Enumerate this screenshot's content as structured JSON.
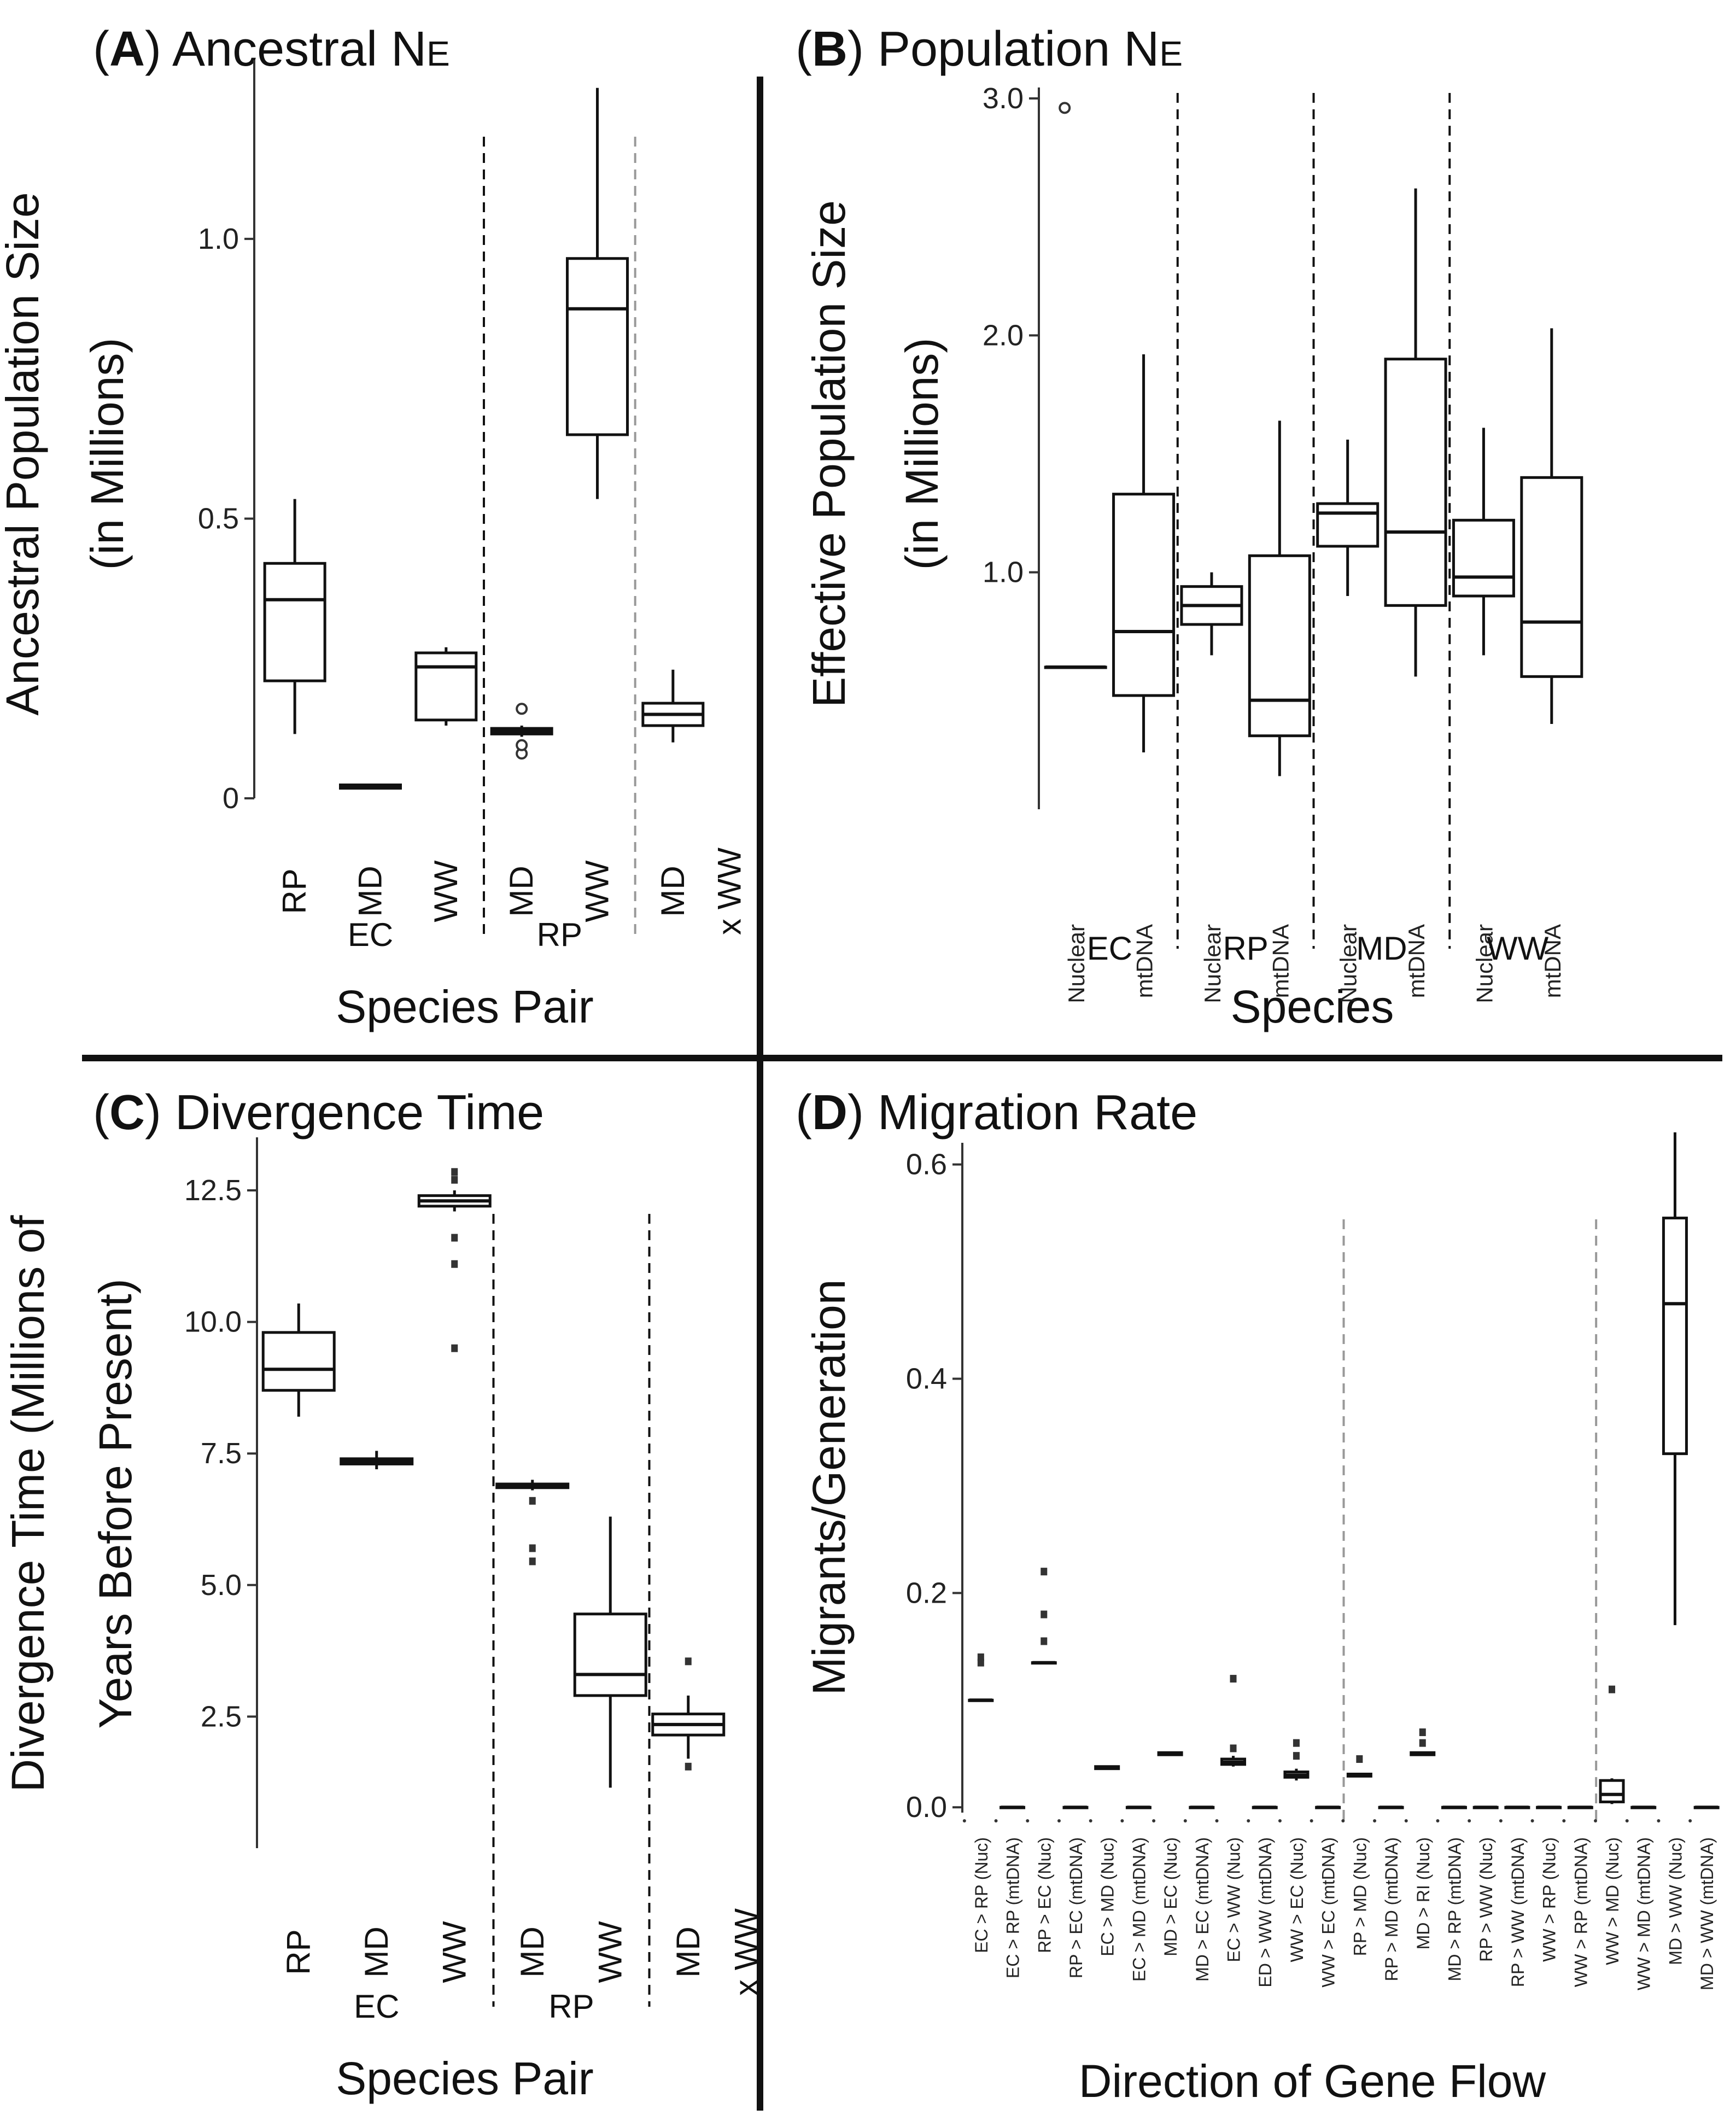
{
  "chart_data": [
    {
      "id": "A",
      "type": "box",
      "title_letter": "A",
      "title_text": "Ancestral N",
      "title_sub": "E",
      "ylabel_line1": "Ancestral Population Size",
      "ylabel_line2": "(in Millions)",
      "xlabel": "Species Pair",
      "ylim": [
        0,
        1.3
      ],
      "yticks": [
        {
          "v": 0,
          "label": "0"
        },
        {
          "v": 0.5,
          "label": "0.5"
        },
        {
          "v": 1.0,
          "label": "1.0"
        }
      ],
      "categories": [
        "RP",
        "MD",
        "WW",
        "MD",
        "WW",
        "MD"
      ],
      "groups": [
        {
          "label": "EC",
          "from": 0,
          "to": 2
        },
        {
          "label": "RP",
          "from": 3,
          "to": 4
        },
        {
          "label": "x WW",
          "from": 5,
          "to": 5
        }
      ],
      "separators": [
        {
          "after": 2,
          "style": "dash"
        },
        {
          "after": 4,
          "style": "gray"
        }
      ],
      "boxes": [
        {
          "q1": 0.21,
          "med": 0.355,
          "q3": 0.42,
          "lo": 0.115,
          "hi": 0.535,
          "out": []
        },
        {
          "q1": 0.018,
          "med": 0.021,
          "q3": 0.024,
          "lo": 0.018,
          "hi": 0.024,
          "out": []
        },
        {
          "q1": 0.14,
          "med": 0.235,
          "q3": 0.26,
          "lo": 0.13,
          "hi": 0.27,
          "out": []
        },
        {
          "q1": 0.115,
          "med": 0.12,
          "q3": 0.125,
          "lo": 0.11,
          "hi": 0.13,
          "out": [
            0.08,
            0.095,
            0.16
          ]
        },
        {
          "q1": 0.65,
          "med": 0.875,
          "q3": 0.965,
          "lo": 0.535,
          "hi": 1.27,
          "out": []
        },
        {
          "q1": 0.13,
          "med": 0.15,
          "q3": 0.17,
          "lo": 0.1,
          "hi": 0.23,
          "out": []
        }
      ]
    },
    {
      "id": "B",
      "type": "box",
      "title_letter": "B",
      "title_text": "Population N",
      "title_sub": "E",
      "ylabel_line1": "Effective Population Size",
      "ylabel_line2": "(in Millions)",
      "xlabel": "Species",
      "ylim": [
        0,
        3.0
      ],
      "yticks": [
        {
          "v": 1.0,
          "label": "1.0"
        },
        {
          "v": 2.0,
          "label": "2.0"
        },
        {
          "v": 3.0,
          "label": "3.0"
        }
      ],
      "categories": [
        "Nuclear",
        "mtDNA",
        "Nuclear",
        "mtDNA",
        "Nuclear",
        "mtDNA",
        "Nuclear",
        "mtDNA"
      ],
      "groups": [
        {
          "label": "EC",
          "from": 0,
          "to": 1
        },
        {
          "label": "RP",
          "from": 2,
          "to": 3
        },
        {
          "label": "MD",
          "from": 4,
          "to": 5
        },
        {
          "label": "WW",
          "from": 6,
          "to": 7
        }
      ],
      "separators": [
        {
          "after": 1,
          "style": "dash"
        },
        {
          "after": 3,
          "style": "dash"
        },
        {
          "after": 5,
          "style": "dash"
        }
      ],
      "boxes": [
        {
          "q1": 0.6,
          "med": 0.6,
          "q3": 0.6,
          "lo": 0.6,
          "hi": 0.6,
          "out": [
            2.96
          ]
        },
        {
          "q1": 0.48,
          "med": 0.75,
          "q3": 1.33,
          "lo": 0.24,
          "hi": 1.92,
          "out": []
        },
        {
          "q1": 0.78,
          "med": 0.86,
          "q3": 0.94,
          "lo": 0.65,
          "hi": 1.0,
          "out": []
        },
        {
          "q1": 0.31,
          "med": 0.46,
          "q3": 1.07,
          "lo": 0.14,
          "hi": 1.64,
          "out": []
        },
        {
          "q1": 1.11,
          "med": 1.25,
          "q3": 1.29,
          "lo": 0.9,
          "hi": 1.56,
          "out": []
        },
        {
          "q1": 0.86,
          "med": 1.17,
          "q3": 1.9,
          "lo": 0.56,
          "hi": 2.62,
          "out": []
        },
        {
          "q1": 0.9,
          "med": 0.98,
          "q3": 1.22,
          "lo": 0.65,
          "hi": 1.61,
          "out": []
        },
        {
          "q1": 0.56,
          "med": 0.79,
          "q3": 1.4,
          "lo": 0.36,
          "hi": 2.03,
          "out": []
        }
      ]
    },
    {
      "id": "C",
      "type": "box",
      "title_letter": "C",
      "title_text": "Divergence Time",
      "title_sub": "",
      "ylabel_line1": "Divergence Time (Millions of",
      "ylabel_line2": "Years Before Present)",
      "xlabel": "Species Pair",
      "ylim": [
        0.0,
        13.3
      ],
      "yticks": [
        {
          "v": 2.5,
          "label": "2.5"
        },
        {
          "v": 5.0,
          "label": "5.0"
        },
        {
          "v": 7.5,
          "label": "7.5"
        },
        {
          "v": 10.0,
          "label": "10.0"
        },
        {
          "v": 12.5,
          "label": "12.5"
        }
      ],
      "categories": [
        "RP",
        "MD",
        "WW",
        "MD",
        "WW",
        "MD"
      ],
      "groups": [
        {
          "label": "EC",
          "from": 0,
          "to": 2
        },
        {
          "label": "RP",
          "from": 3,
          "to": 4
        },
        {
          "label": "x WW",
          "from": 5,
          "to": 5
        }
      ],
      "separators": [
        {
          "after": 2,
          "style": "dash"
        },
        {
          "after": 4,
          "style": "dash"
        }
      ],
      "boxes": [
        {
          "q1": 8.7,
          "med": 9.1,
          "q3": 9.8,
          "lo": 8.2,
          "hi": 10.35,
          "out": []
        },
        {
          "q1": 7.3,
          "med": 7.35,
          "q3": 7.4,
          "lo": 7.2,
          "hi": 7.55,
          "out": []
        },
        {
          "q1": 12.2,
          "med": 12.3,
          "q3": 12.4,
          "lo": 12.1,
          "hi": 12.5,
          "out": [
            12.85,
            12.7,
            11.6,
            11.1,
            9.5
          ]
        },
        {
          "q1": 6.85,
          "med": 6.88,
          "q3": 6.92,
          "lo": 6.8,
          "hi": 7.0,
          "out": [
            6.6,
            5.7,
            5.45
          ]
        },
        {
          "q1": 2.9,
          "med": 3.3,
          "q3": 4.45,
          "lo": 1.15,
          "hi": 6.3,
          "out": []
        },
        {
          "q1": 2.15,
          "med": 2.35,
          "q3": 2.55,
          "lo": 1.7,
          "hi": 2.9,
          "out": [
            3.55,
            1.55
          ]
        }
      ]
    },
    {
      "id": "D",
      "type": "box",
      "title_letter": "D",
      "title_text": "Migration Rate",
      "title_sub": "",
      "ylabel_line1": "Migrants/Generation",
      "ylabel_line2": "",
      "xlabel": "Direction of Gene Flow",
      "ylim": [
        -0.005,
        0.61
      ],
      "yticks": [
        {
          "v": 0.0,
          "label": "0.0"
        },
        {
          "v": 0.2,
          "label": "0.2"
        },
        {
          "v": 0.4,
          "label": "0.4"
        },
        {
          "v": 0.6,
          "label": "0.6"
        }
      ],
      "categories": [
        "EC > RP (Nuc)",
        "EC > RP (mtDNA)",
        "RP > EC (Nuc)",
        "RP > EC (mtDNA)",
        "EC > MD (Nuc)",
        "EC > MD (mtDNA)",
        "MD > EC (Nuc)",
        "MD > EC (mtDNA)",
        "EC > WW (Nuc)",
        "ED > WW (mtDNA)",
        "WW > EC (Nuc)",
        "WW > EC (mtDNA)",
        "RP > MD (Nuc)",
        "RP > MD (mtDNA)",
        "MD > RI (Nuc)",
        "MD > RP (mtDNA)",
        "RP > WW (Nuc)",
        "RP > WW (mtDNA)",
        "WW > RP (Nuc)",
        "WW > RP (mtDNA)",
        "WW > MD (Nuc)",
        "WW > MD (mtDNA)",
        "MD > WW (Nuc)",
        "MD > WW (mtDNA)"
      ],
      "groups": [],
      "separators": [
        {
          "after": 11,
          "style": "gray"
        },
        {
          "after": 19,
          "style": "gray"
        }
      ],
      "boxes": [
        {
          "q1": 0.1,
          "med": 0.1,
          "q3": 0.1,
          "lo": 0.1,
          "hi": 0.1,
          "out": [
            0.14,
            0.135
          ]
        },
        {
          "q1": 0,
          "med": 0,
          "q3": 0,
          "lo": 0,
          "hi": 0,
          "out": []
        },
        {
          "q1": 0.135,
          "med": 0.135,
          "q3": 0.135,
          "lo": 0.135,
          "hi": 0.135,
          "out": [
            0.22,
            0.18,
            0.155
          ]
        },
        {
          "q1": 0,
          "med": 0,
          "q3": 0,
          "lo": 0,
          "hi": 0,
          "out": []
        },
        {
          "q1": 0.036,
          "med": 0.037,
          "q3": 0.038,
          "lo": 0.035,
          "hi": 0.039,
          "out": []
        },
        {
          "q1": 0,
          "med": 0,
          "q3": 0,
          "lo": 0,
          "hi": 0,
          "out": []
        },
        {
          "q1": 0.049,
          "med": 0.05,
          "q3": 0.051,
          "lo": 0.048,
          "hi": 0.052,
          "out": []
        },
        {
          "q1": 0,
          "med": 0,
          "q3": 0,
          "lo": 0,
          "hi": 0,
          "out": []
        },
        {
          "q1": 0.04,
          "med": 0.042,
          "q3": 0.045,
          "lo": 0.038,
          "hi": 0.048,
          "out": [
            0.12,
            0.055
          ]
        },
        {
          "q1": 0,
          "med": 0,
          "q3": 0,
          "lo": 0,
          "hi": 0,
          "out": []
        },
        {
          "q1": 0.028,
          "med": 0.03,
          "q3": 0.033,
          "lo": 0.025,
          "hi": 0.036,
          "out": [
            0.06,
            0.048
          ]
        },
        {
          "q1": 0,
          "med": 0,
          "q3": 0,
          "lo": 0,
          "hi": 0,
          "out": []
        },
        {
          "q1": 0.029,
          "med": 0.03,
          "q3": 0.031,
          "lo": 0.028,
          "hi": 0.032,
          "out": [
            0.045
          ]
        },
        {
          "q1": 0,
          "med": 0,
          "q3": 0,
          "lo": 0,
          "hi": 0,
          "out": []
        },
        {
          "q1": 0.049,
          "med": 0.05,
          "q3": 0.051,
          "lo": 0.048,
          "hi": 0.052,
          "out": [
            0.07,
            0.06
          ]
        },
        {
          "q1": 0,
          "med": 0,
          "q3": 0,
          "lo": 0,
          "hi": 0,
          "out": []
        },
        {
          "q1": 0,
          "med": 0,
          "q3": 0,
          "lo": 0,
          "hi": 0,
          "out": []
        },
        {
          "q1": 0,
          "med": 0,
          "q3": 0,
          "lo": 0,
          "hi": 0,
          "out": []
        },
        {
          "q1": 0,
          "med": 0,
          "q3": 0,
          "lo": 0,
          "hi": 0,
          "out": []
        },
        {
          "q1": 0,
          "med": 0,
          "q3": 0,
          "lo": 0,
          "hi": 0,
          "out": []
        },
        {
          "q1": 0.005,
          "med": 0.012,
          "q3": 0.025,
          "lo": 0.003,
          "hi": 0.027,
          "out": [
            0.11
          ]
        },
        {
          "q1": 0,
          "med": 0,
          "q3": 0,
          "lo": 0,
          "hi": 0,
          "out": []
        },
        {
          "q1": 0.33,
          "med": 0.47,
          "q3": 0.55,
          "lo": 0.17,
          "hi": 0.63,
          "out": []
        },
        {
          "q1": 0,
          "med": 0,
          "q3": 0,
          "lo": 0,
          "hi": 0,
          "out": []
        }
      ]
    }
  ]
}
